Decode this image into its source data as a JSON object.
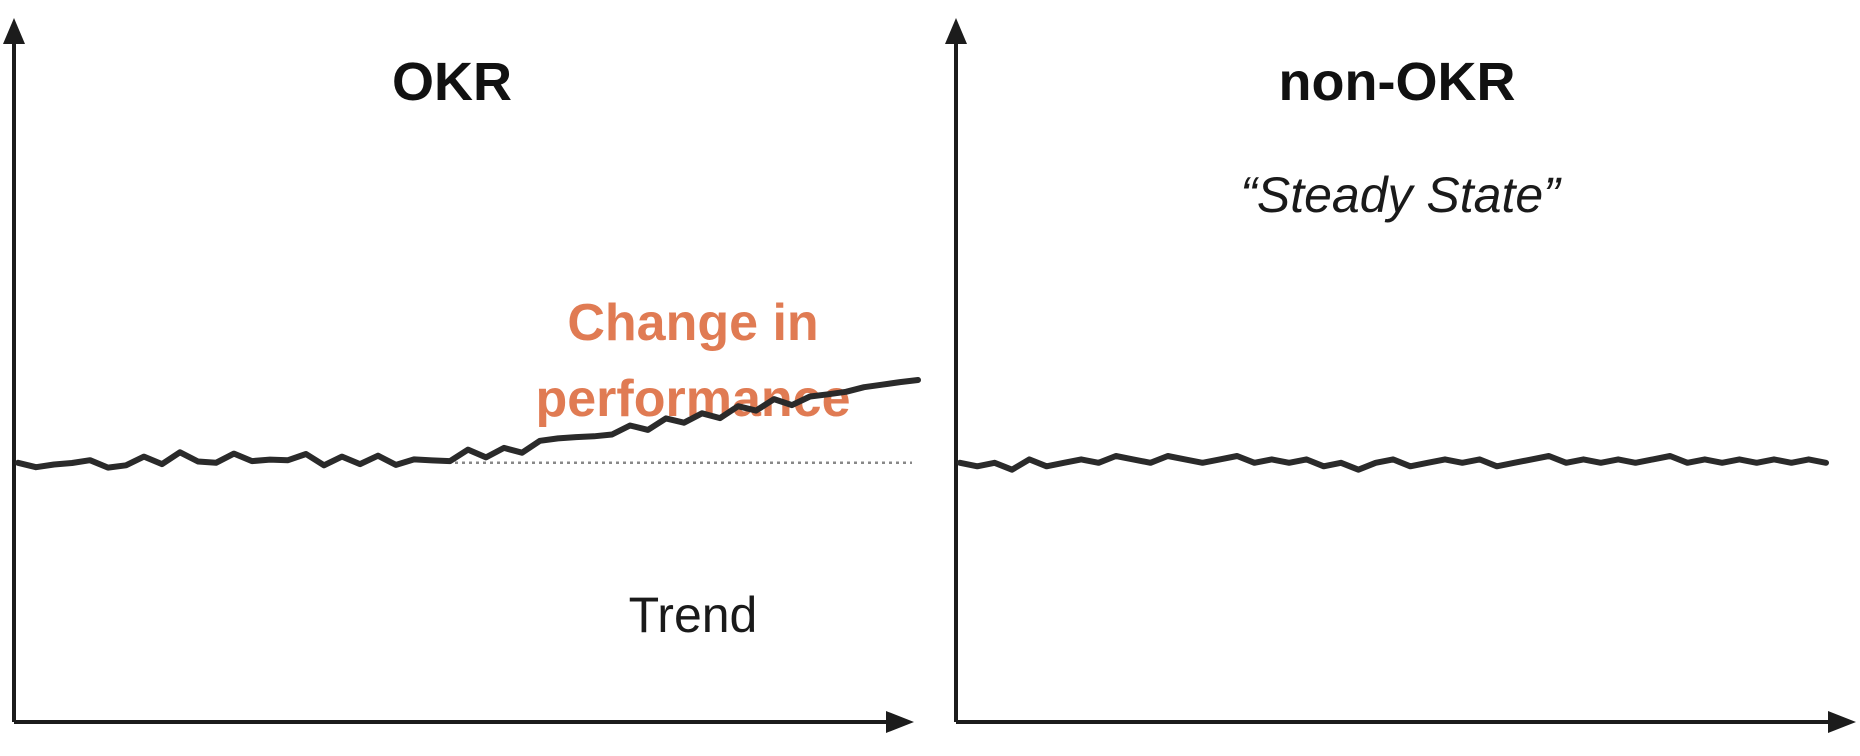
{
  "colors": {
    "callout": "#e07b53",
    "line": "#2a2a2a",
    "trend": "#888888",
    "axis": "#1c1c1c"
  },
  "chart_data": [
    {
      "type": "line",
      "title": "OKR",
      "annotations": {
        "callout_line1": "Change in",
        "callout_line2": "performance",
        "trend_label": "Trend"
      },
      "ylim": [
        0,
        100
      ],
      "xlim": [
        0,
        100
      ],
      "grid": false,
      "trend_value": 38,
      "series": [
        {
          "x": [
            0,
            2,
            4,
            6,
            8,
            10,
            12,
            14,
            16,
            18,
            20,
            22,
            24,
            26,
            28,
            30,
            32,
            34,
            36,
            38,
            40,
            42,
            44,
            46,
            48,
            50,
            52,
            54,
            56,
            58,
            60,
            62,
            64,
            66,
            68,
            70,
            72,
            74,
            76,
            78,
            80,
            82,
            84,
            86,
            88,
            90,
            92,
            94,
            96,
            98,
            100
          ],
          "values": [
            38,
            37,
            38,
            37.5,
            38.5,
            37,
            38,
            38.5,
            38,
            39,
            38.5,
            38,
            39,
            38.5,
            38,
            38.5,
            39,
            38,
            38.5,
            38,
            38.5,
            38,
            38.5,
            38,
            38.5,
            39,
            38,
            38.5,
            38,
            38.5,
            39,
            38,
            38.5,
            38,
            38.5,
            38,
            38.5,
            38,
            38.5,
            38,
            38.5,
            38,
            38.5,
            38,
            38.5,
            38,
            38.5,
            38,
            38.5,
            38,
            38.5
          ]
        }
      ]
    },
    {
      "type": "line",
      "title": "non-OKR",
      "subtitle": "“Steady State”",
      "ylim": [
        0,
        100
      ],
      "xlim": [
        0,
        100
      ],
      "grid": false,
      "series": [
        {
          "x": [
            0,
            2,
            4,
            6,
            8,
            10,
            12,
            14,
            16,
            18,
            20,
            22,
            24,
            26,
            28,
            30,
            32,
            34,
            36,
            38,
            40,
            42,
            44,
            46,
            48,
            50,
            52,
            54,
            56,
            58,
            60,
            62,
            64,
            66,
            68,
            70,
            72,
            74,
            76,
            78,
            80,
            82,
            84,
            86,
            88,
            90,
            92,
            94,
            96,
            98,
            100
          ],
          "values": [
            38,
            37.5,
            38,
            37,
            38.5,
            37.5,
            38,
            38.5,
            38,
            39,
            38.5,
            38,
            39,
            38.5,
            38,
            38.5,
            39,
            38,
            38.5,
            38,
            38.5,
            37.5,
            38,
            37,
            38,
            38.5,
            37.5,
            38,
            38.5,
            38,
            38.5,
            37.5,
            38,
            38.5,
            39,
            38,
            38.5,
            38,
            38.5,
            38,
            38.5,
            39,
            38,
            38.5,
            38,
            38.5,
            38,
            38.5,
            38,
            38.5,
            38
          ]
        }
      ]
    }
  ]
}
